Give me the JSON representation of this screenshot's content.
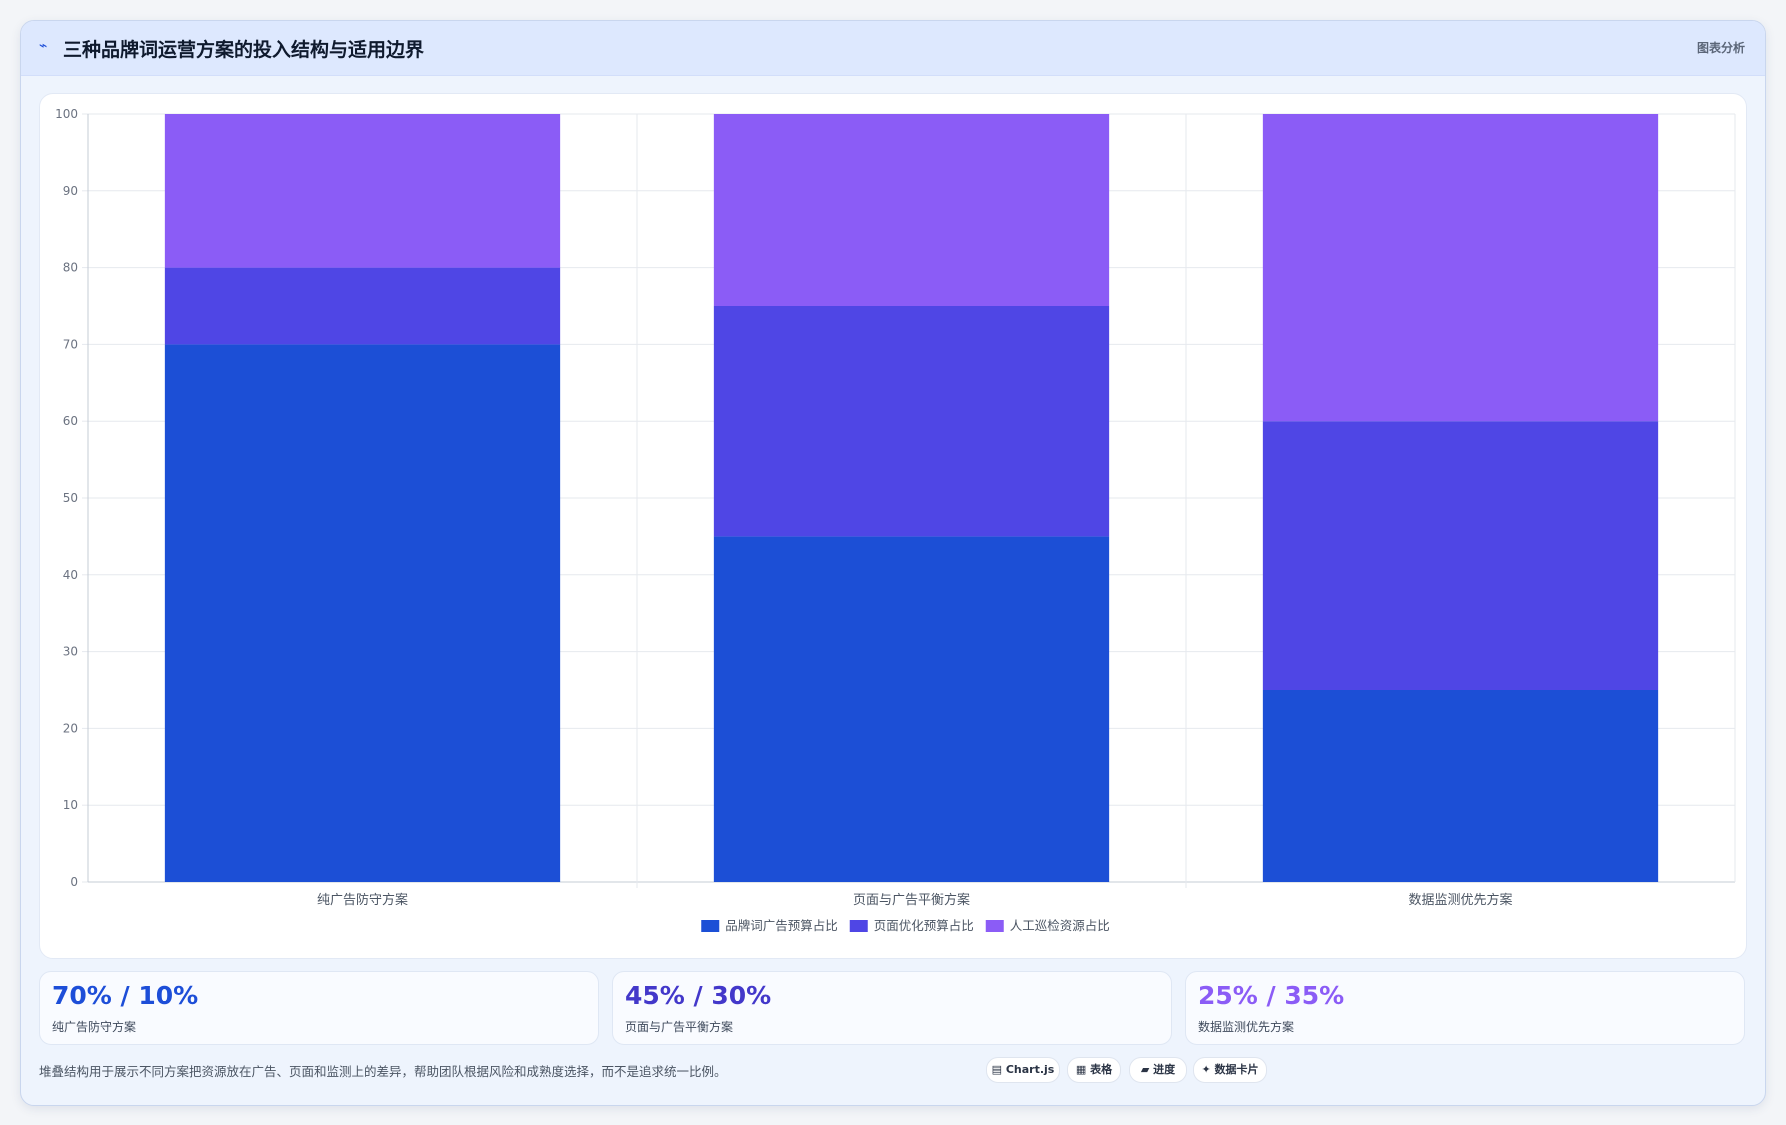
{
  "header": {
    "icon": "pulse-icon",
    "title": "三种品牌词运营方案的投入结构与适用边界",
    "action_label": "图表分析"
  },
  "colors": {
    "brand_ads": "#1c4fd6",
    "page_opt": "#4f46e5",
    "manual": "#8b5cf6"
  },
  "chart_data": {
    "type": "bar",
    "stacked": true,
    "categories": [
      "纯广告防守方案",
      "页面与广告平衡方案",
      "数据监测优先方案"
    ],
    "series": [
      {
        "name": "品牌词广告预算占比",
        "values": [
          70,
          45,
          25
        ],
        "color": "#1c4fd6"
      },
      {
        "name": "页面优化预算占比",
        "values": [
          10,
          30,
          35
        ],
        "color": "#4f46e5"
      },
      {
        "name": "人工巡检资源占比",
        "values": [
          20,
          25,
          40
        ],
        "color": "#8b5cf6"
      }
    ],
    "ylim": [
      0,
      100
    ],
    "yticks": [
      0,
      10,
      20,
      30,
      40,
      50,
      60,
      70,
      80,
      90,
      100
    ],
    "grid": true,
    "legend_position": "bottom-center"
  },
  "stats": [
    {
      "value": "70% / 10%",
      "label": "纯广告防守方案",
      "color": "#1d4ed8"
    },
    {
      "value": "45% / 30%",
      "label": "页面与广告平衡方案",
      "color": "#4338ca"
    },
    {
      "value": "25% / 35%",
      "label": "数据监测优先方案",
      "color": "#8b5cf6"
    }
  ],
  "footnote": "堆叠结构用于展示不同方案把资源放在广告、页面和监测上的差异，帮助团队根据风险和成熟度选择，而不是追求统一比例。",
  "chips": [
    {
      "label": "▤ Chart.js",
      "icon": "chart-icon"
    },
    {
      "label": "▦ 表格",
      "icon": "table-icon"
    },
    {
      "label": "▰ 进度",
      "icon": "progress-icon"
    },
    {
      "label": "✦ 数据卡片",
      "icon": "card-icon"
    }
  ]
}
